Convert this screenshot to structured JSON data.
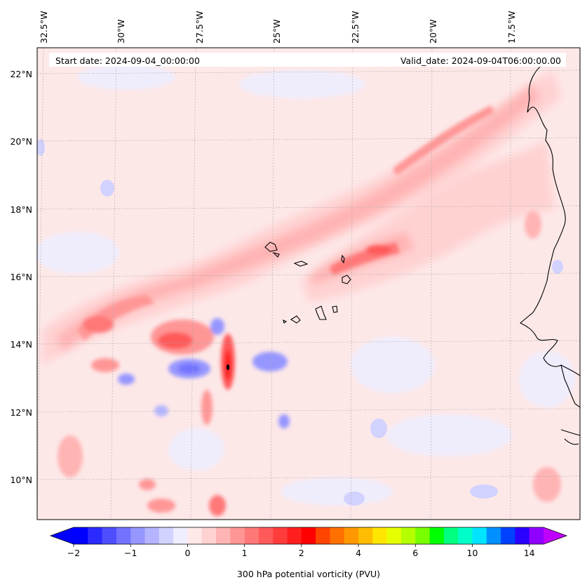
{
  "map": {
    "start_date": "Start date: 2024-09-04_00:00:00",
    "valid_date": "Valid_date: 2024-09-04T06:00:00.00",
    "lon_labels": [
      "32.5°W",
      "30°W",
      "27.5°W",
      "25°W",
      "22.5°W",
      "20°W",
      "17.5°W"
    ],
    "lat_labels": [
      "22°N",
      "20°N",
      "18°N",
      "16°N",
      "14°N",
      "12°N",
      "10°N"
    ]
  },
  "colorbar": {
    "title": "300 hPa potential vorticity (PVU)",
    "tick_labels": [
      "−2",
      "−1",
      "0",
      "1",
      "2",
      "4",
      "6",
      "10",
      "14"
    ],
    "colors": [
      "#0000ff",
      "#2a2aff",
      "#4e4eff",
      "#7272ff",
      "#9696ff",
      "#b4b4ff",
      "#d2d2ff",
      "#eeeeff",
      "#ffe8e8",
      "#ffd2d2",
      "#ffb4b4",
      "#ff9696",
      "#ff7878",
      "#ff5a5a",
      "#ff3c3c",
      "#ff1e1e",
      "#ff0000",
      "#ff4400",
      "#ff7000",
      "#ff9800",
      "#ffbc00",
      "#ffe600",
      "#e6ff00",
      "#b4ff00",
      "#78ff00",
      "#00ff00",
      "#00ff80",
      "#00ffc8",
      "#00e4ff",
      "#0090ff",
      "#0040ff",
      "#2a00ff",
      "#9000ff"
    ],
    "under_color": "#0000ff",
    "over_color": "#c000ff"
  }
}
